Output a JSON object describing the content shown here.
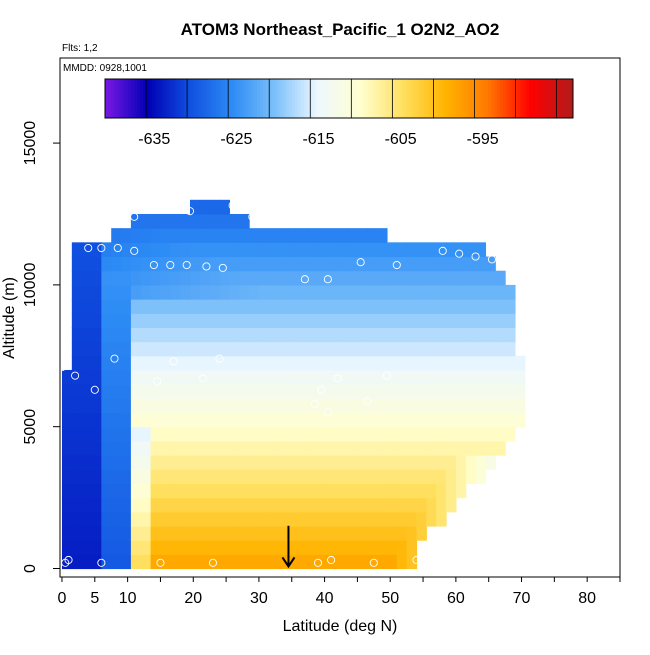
{
  "chart_data": {
    "type": "heatmap",
    "title": "ATOM3 Northeast_Pacific_1 O2N2_AO2",
    "flights_note": "Flts: 1,2",
    "date_note": "MMDD: 0928,1001",
    "xlabel": "Latitude (deg N)",
    "ylabel": "Altitude (m)",
    "xlim": [
      -0.3,
      85
    ],
    "ylim": [
      -300,
      18000
    ],
    "x_ticks": [
      0,
      5,
      10,
      20,
      30,
      40,
      50,
      60,
      70,
      80
    ],
    "x_tick_labels": [
      "0",
      "5",
      "10",
      "20",
      "30",
      "40",
      "50",
      "60",
      "70",
      "80"
    ],
    "y_ticks": [
      0,
      5000,
      10000,
      15000
    ],
    "y_tick_labels": [
      "0",
      "5000",
      "10000",
      "15000"
    ],
    "colorbar": {
      "min": -641,
      "max": -584,
      "ticks": [
        -635,
        -625,
        -615,
        -605,
        -595
      ],
      "tick_labels": [
        "-635",
        "-625",
        "-615",
        "-605",
        "-595"
      ],
      "stops": [
        "#7a18e6",
        "#0000b4",
        "#1050e0",
        "#2d8cf5",
        "#7cc0fa",
        "#eef8ff",
        "#ffffd0",
        "#ffe060",
        "#ffb400",
        "#ff7800",
        "#ff0000",
        "#b01c1c"
      ]
    },
    "columns": [
      {
        "lat": 0,
        "top": 7200
      },
      {
        "lat": 3,
        "top": 11500
      },
      {
        "lat": 6,
        "top": 11700
      },
      {
        "lat": 9,
        "top": 12100
      },
      {
        "lat": 12,
        "top": 12400
      },
      {
        "lat": 15,
        "top": 12400
      },
      {
        "lat": 18,
        "top": 12500
      },
      {
        "lat": 21,
        "top": 12800
      },
      {
        "lat": 24,
        "top": 12800
      },
      {
        "lat": 27,
        "top": 12700
      },
      {
        "lat": 30,
        "top": 12000
      },
      {
        "lat": 33,
        "top": 12000
      },
      {
        "lat": 36,
        "top": 12000
      },
      {
        "lat": 39,
        "top": 12000
      },
      {
        "lat": 42,
        "top": 12000
      },
      {
        "lat": 45,
        "top": 12000
      },
      {
        "lat": 48,
        "top": 12000
      },
      {
        "lat": 51,
        "top": 11600
      },
      {
        "lat": 54,
        "top": 11500
      },
      {
        "lat": 57,
        "top": 11500
      },
      {
        "lat": 60,
        "top": 11400
      },
      {
        "lat": 63,
        "top": 11400
      },
      {
        "lat": 66,
        "top": 11200
      },
      {
        "lat": 69,
        "top": 10800
      }
    ],
    "samples": [
      {
        "lat": 0.5,
        "alt": 200
      },
      {
        "lat": 1,
        "alt": 300
      },
      {
        "lat": 6,
        "alt": 200
      },
      {
        "lat": 15,
        "alt": 200
      },
      {
        "lat": 23,
        "alt": 200
      },
      {
        "lat": 39,
        "alt": 200
      },
      {
        "lat": 41,
        "alt": 300
      },
      {
        "lat": 47.5,
        "alt": 200
      },
      {
        "lat": 54,
        "alt": 300
      },
      {
        "lat": 0,
        "alt": 7100
      },
      {
        "lat": 2,
        "alt": 6800
      },
      {
        "lat": 5,
        "alt": 6300
      },
      {
        "lat": 8,
        "alt": 7400
      },
      {
        "lat": 14.5,
        "alt": 6600
      },
      {
        "lat": 17,
        "alt": 7300
      },
      {
        "lat": 21.5,
        "alt": 6700
      },
      {
        "lat": 24,
        "alt": 7400
      },
      {
        "lat": 38.5,
        "alt": 5800
      },
      {
        "lat": 39.5,
        "alt": 6300
      },
      {
        "lat": 40.5,
        "alt": 5500
      },
      {
        "lat": 42,
        "alt": 6700
      },
      {
        "lat": 46.5,
        "alt": 5900
      },
      {
        "lat": 49.5,
        "alt": 6800
      },
      {
        "lat": 2.5,
        "alt": 11900
      },
      {
        "lat": 4,
        "alt": 11300
      },
      {
        "lat": 6,
        "alt": 11300
      },
      {
        "lat": 8.5,
        "alt": 11300
      },
      {
        "lat": 11,
        "alt": 11200
      },
      {
        "lat": 14,
        "alt": 10700
      },
      {
        "lat": 16.5,
        "alt": 10700
      },
      {
        "lat": 19,
        "alt": 10700
      },
      {
        "lat": 22,
        "alt": 10650
      },
      {
        "lat": 24.5,
        "alt": 10600
      },
      {
        "lat": 11,
        "alt": 12400
      },
      {
        "lat": 19.5,
        "alt": 12600
      },
      {
        "lat": 26,
        "alt": 12800
      },
      {
        "lat": 29,
        "alt": 12400
      },
      {
        "lat": 37,
        "alt": 10200
      },
      {
        "lat": 40.5,
        "alt": 10200
      },
      {
        "lat": 45.5,
        "alt": 10800
      },
      {
        "lat": 51,
        "alt": 10700
      },
      {
        "lat": 58,
        "alt": 11200
      },
      {
        "lat": 60.5,
        "alt": 11100
      },
      {
        "lat": 63,
        "alt": 11000
      },
      {
        "lat": 65.5,
        "alt": 10900
      },
      {
        "lat": 68.5,
        "alt": 10800
      }
    ],
    "arrow": {
      "lat": 34.5,
      "alt_top": 800,
      "alt_tip": 0
    },
    "grid": false,
    "legend": "top (horizontal colorbar)"
  }
}
